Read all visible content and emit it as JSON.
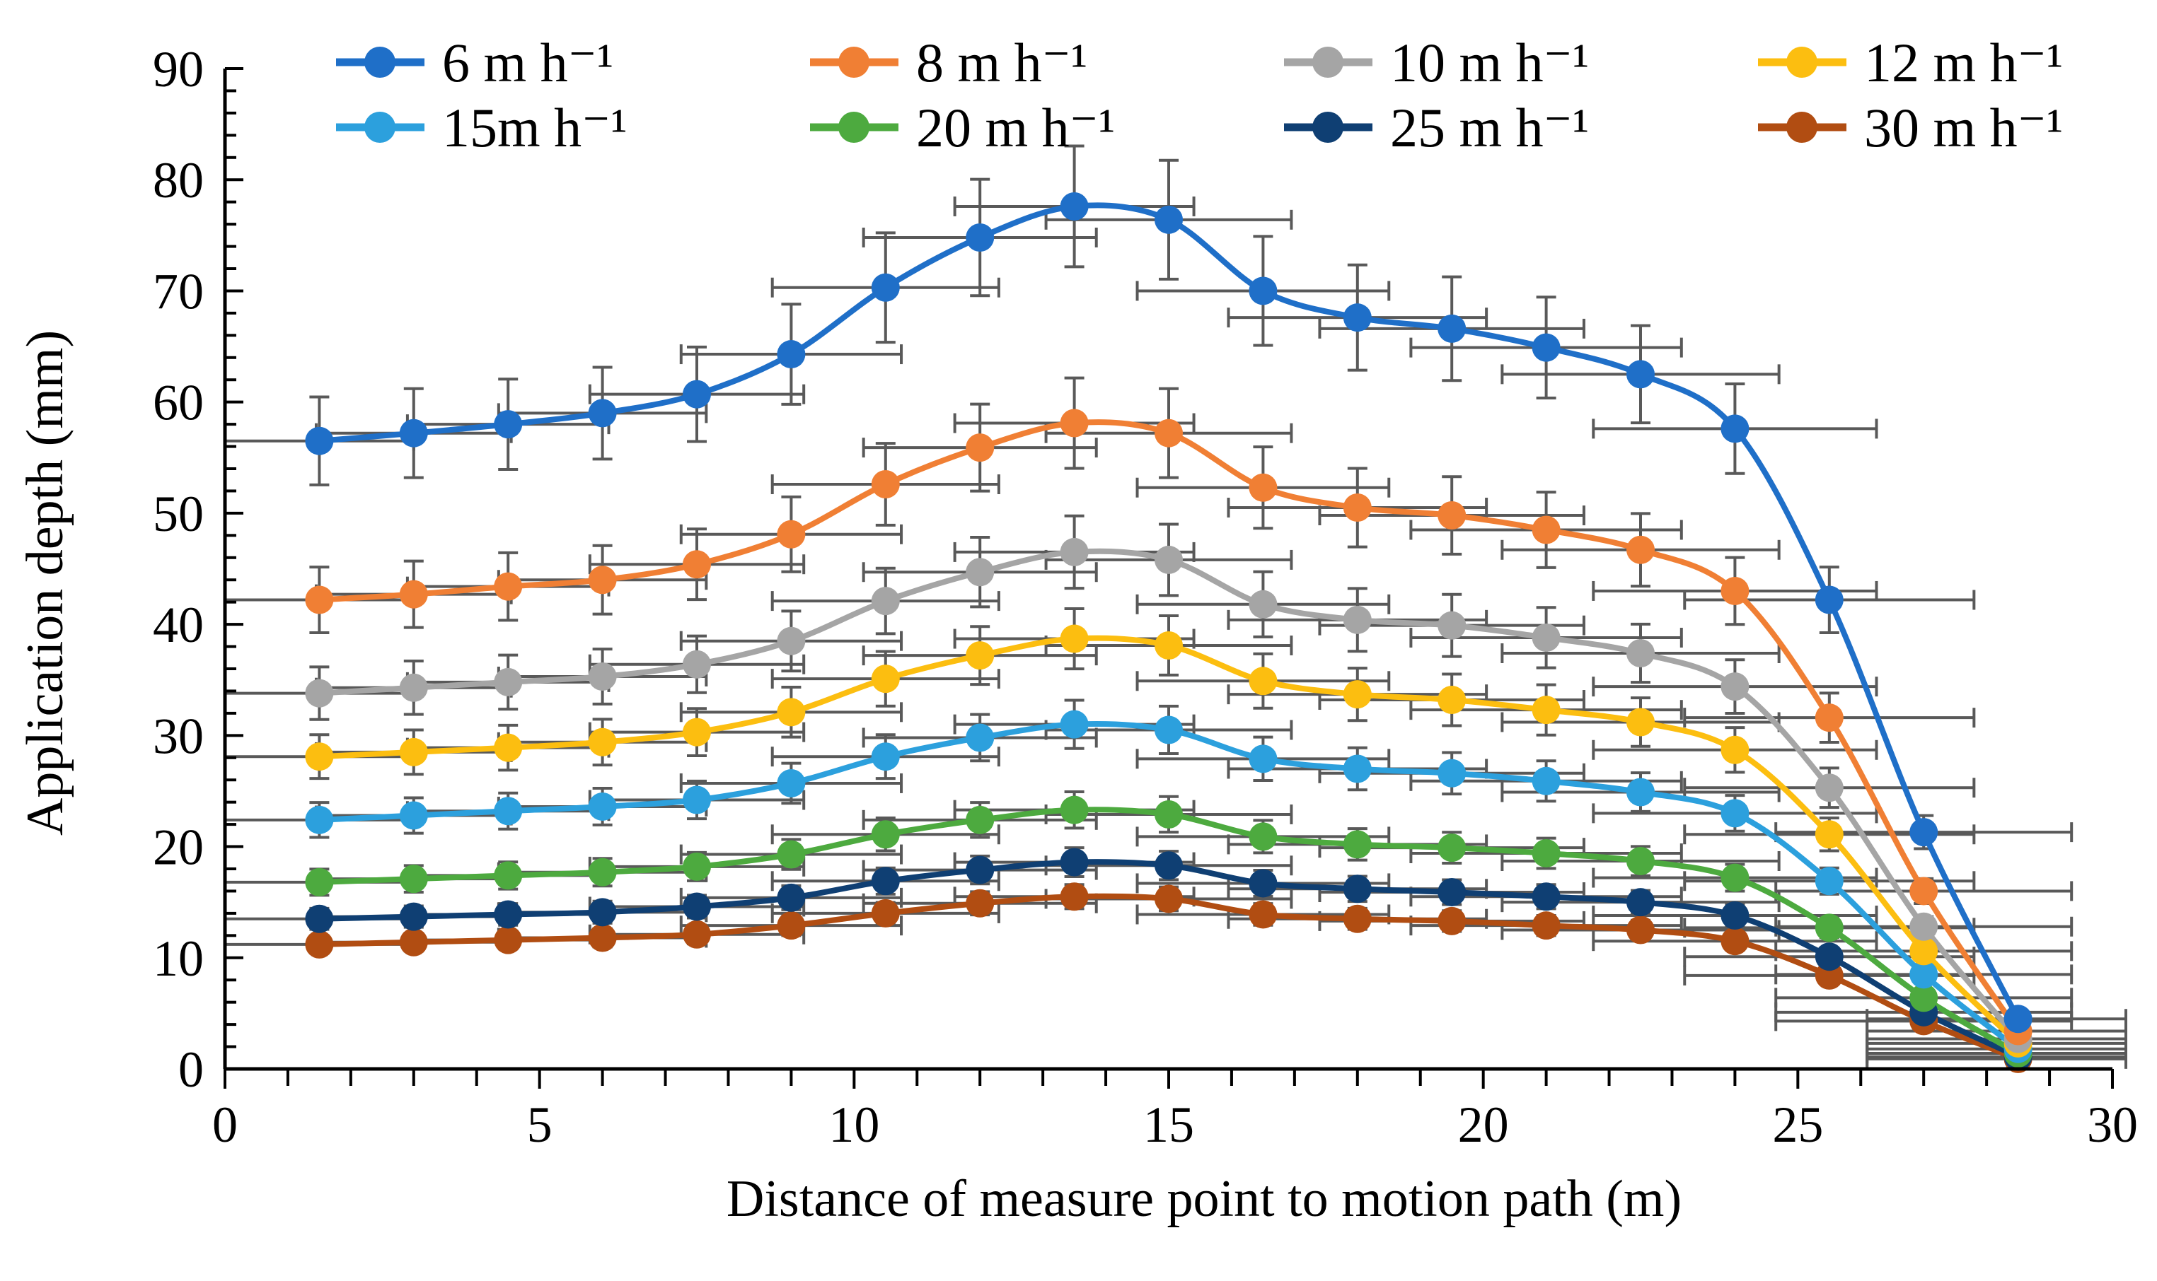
{
  "chart_data": {
    "type": "line",
    "title": "",
    "xlabel": "Distance of measure point to motion path (m)",
    "ylabel": "Application depth (mm)",
    "xlim": [
      0,
      30
    ],
    "ylim": [
      0,
      90
    ],
    "x_ticks": [
      "0",
      "5",
      "10",
      "15",
      "20",
      "25",
      "30"
    ],
    "y_ticks": [
      "0",
      "10",
      "20",
      "30",
      "40",
      "50",
      "60",
      "70",
      "80",
      "90"
    ],
    "grid": false,
    "legend_position": "top",
    "x": [
      1.5,
      3,
      4.5,
      6,
      7.5,
      9,
      10.5,
      12,
      13.5,
      15,
      16.5,
      18,
      19.5,
      21,
      22.5,
      24,
      25.5,
      27,
      28.5
    ],
    "error_bars": {
      "y_relative": 0.07,
      "x_half_width_start": 1.5,
      "x_half_width_end": 2.4
    },
    "series": [
      {
        "name": "6 m h⁻¹",
        "color": "#1f6fc8",
        "values": [
          56.5,
          57.2,
          58.0,
          59.0,
          60.7,
          64.3,
          70.3,
          74.8,
          77.6,
          76.4,
          70.0,
          67.6,
          66.6,
          64.9,
          62.5,
          57.6,
          42.2,
          21.3,
          4.5
        ]
      },
      {
        "name": "8 m h⁻¹",
        "color": "#f07f34",
        "values": [
          42.2,
          42.7,
          43.4,
          44.0,
          45.4,
          48.1,
          52.6,
          55.9,
          58.1,
          57.2,
          52.3,
          50.5,
          49.8,
          48.5,
          46.7,
          43.0,
          31.6,
          16.0,
          3.4
        ]
      },
      {
        "name": "10 m h⁻¹",
        "color": "#a5a5a5",
        "values": [
          33.8,
          34.3,
          34.8,
          35.3,
          36.4,
          38.5,
          42.1,
          44.7,
          46.5,
          45.8,
          41.8,
          40.4,
          39.9,
          38.8,
          37.4,
          34.4,
          25.3,
          12.8,
          2.7
        ]
      },
      {
        "name": "12 m h⁻¹",
        "color": "#fcbe10",
        "values": [
          28.1,
          28.5,
          28.9,
          29.4,
          30.3,
          32.1,
          35.1,
          37.2,
          38.7,
          38.1,
          34.9,
          33.7,
          33.2,
          32.3,
          31.2,
          28.7,
          21.1,
          10.6,
          2.3
        ]
      },
      {
        "name": "15m h⁻¹",
        "color": "#2ca0dd",
        "values": [
          22.4,
          22.8,
          23.2,
          23.6,
          24.2,
          25.7,
          28.1,
          29.8,
          31.0,
          30.5,
          27.9,
          27.0,
          26.6,
          25.9,
          24.9,
          23.0,
          16.9,
          8.5,
          1.8
        ]
      },
      {
        "name": "20 m h⁻¹",
        "color": "#4daa3f",
        "values": [
          16.8,
          17.1,
          17.4,
          17.7,
          18.2,
          19.3,
          21.1,
          22.4,
          23.3,
          22.9,
          20.9,
          20.2,
          19.9,
          19.4,
          18.7,
          17.2,
          12.7,
          6.4,
          1.4
        ]
      },
      {
        "name": "25 m h⁻¹",
        "color": "#0f3f73",
        "values": [
          13.5,
          13.7,
          13.9,
          14.1,
          14.6,
          15.4,
          16.9,
          17.9,
          18.6,
          18.3,
          16.7,
          16.2,
          15.9,
          15.5,
          15.0,
          13.8,
          10.1,
          5.1,
          1.1
        ]
      },
      {
        "name": "30 m h⁻¹",
        "color": "#b14d12",
        "values": [
          11.2,
          11.4,
          11.6,
          11.8,
          12.1,
          12.9,
          14.0,
          14.9,
          15.5,
          15.3,
          13.9,
          13.5,
          13.3,
          12.9,
          12.5,
          11.5,
          8.4,
          4.3,
          0.9
        ]
      }
    ]
  }
}
